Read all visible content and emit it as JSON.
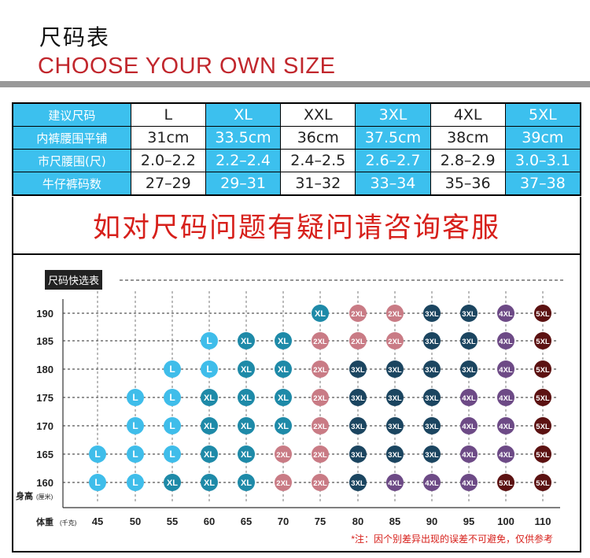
{
  "header": {
    "title": "尺码表",
    "subtitle": "CHOOSE YOUR OWN SIZE"
  },
  "size_table": {
    "rows": [
      {
        "label": "建议尺码",
        "values": [
          "L",
          "XL",
          "XXL",
          "3XL",
          "4XL",
          "5XL"
        ]
      },
      {
        "label": "内裤腰围平铺",
        "values": [
          "31cm",
          "33.5cm",
          "36cm",
          "37.5cm",
          "38cm",
          "39cm"
        ]
      },
      {
        "label": "市尺腰围(尺)",
        "values": [
          "2.0–2.2",
          "2.2–2.4",
          "2.4–2.5",
          "2.6–2.7",
          "2.8–2.9",
          "3.0–3.1"
        ]
      },
      {
        "label": "牛仔裤码数",
        "values": [
          "27–29",
          "29–31",
          "31–32",
          "33–34",
          "35–36",
          "37–38"
        ]
      }
    ]
  },
  "notice": "如对尺码问题有疑问请咨询客服",
  "quick_chart": {
    "title": "尺码快选表",
    "y_axis_label": "身高",
    "y_axis_unit": "(厘米)",
    "x_axis_label": "体重",
    "x_axis_unit": "(千克)",
    "heights": [
      "190",
      "185",
      "180",
      "175",
      "170",
      "165",
      "160"
    ],
    "weights": [
      "45",
      "50",
      "55",
      "60",
      "65",
      "70",
      "75",
      "80",
      "85",
      "90",
      "95",
      "100",
      "110"
    ],
    "grid": [
      [
        "",
        "",
        "",
        "",
        "",
        "",
        "XL",
        "2XL",
        "2XL",
        "3XL",
        "3XL",
        "4XL",
        "5XL"
      ],
      [
        "",
        "",
        "",
        "L",
        "XL",
        "XL",
        "2XL",
        "2XL",
        "2XL",
        "3XL",
        "3XL",
        "4XL",
        "5XL"
      ],
      [
        "",
        "",
        "L",
        "L",
        "XL",
        "XL",
        "2XL",
        "3XL",
        "3XL",
        "3XL",
        "3XL",
        "4XL",
        "5XL"
      ],
      [
        "",
        "L",
        "L",
        "XL",
        "XL",
        "XL",
        "2XL",
        "3XL",
        "3XL",
        "3XL",
        "4XL",
        "4XL",
        "5XL"
      ],
      [
        "",
        "L",
        "L",
        "XL",
        "XL",
        "XL",
        "2XL",
        "3XL",
        "3XL",
        "3XL",
        "4XL",
        "4XL",
        "5XL"
      ],
      [
        "L",
        "L",
        "L",
        "XL",
        "XL",
        "2XL",
        "2XL",
        "3XL",
        "3XL",
        "3XL",
        "4XL",
        "4XL",
        "5XL"
      ],
      [
        "L",
        "L",
        "XL",
        "XL",
        "XL",
        "2XL",
        "2XL",
        "3XL",
        "4XL",
        "4XL",
        "4XL",
        "5XL",
        "5XL"
      ]
    ],
    "size_colors": {
      "L": "#3fbdea",
      "XL": "#1e8aa8",
      "2XL": "#c97b85",
      "3XL": "#1b4560",
      "4XL": "#6d4a86",
      "5XL": "#5c1212"
    },
    "footnote": "*注：因个别差异出现的误差不可避免，仅供参考"
  },
  "colors": {
    "accent_blue": "#3cc0ee",
    "title_red": "#c1272d",
    "notice_red": "#d7201b"
  }
}
